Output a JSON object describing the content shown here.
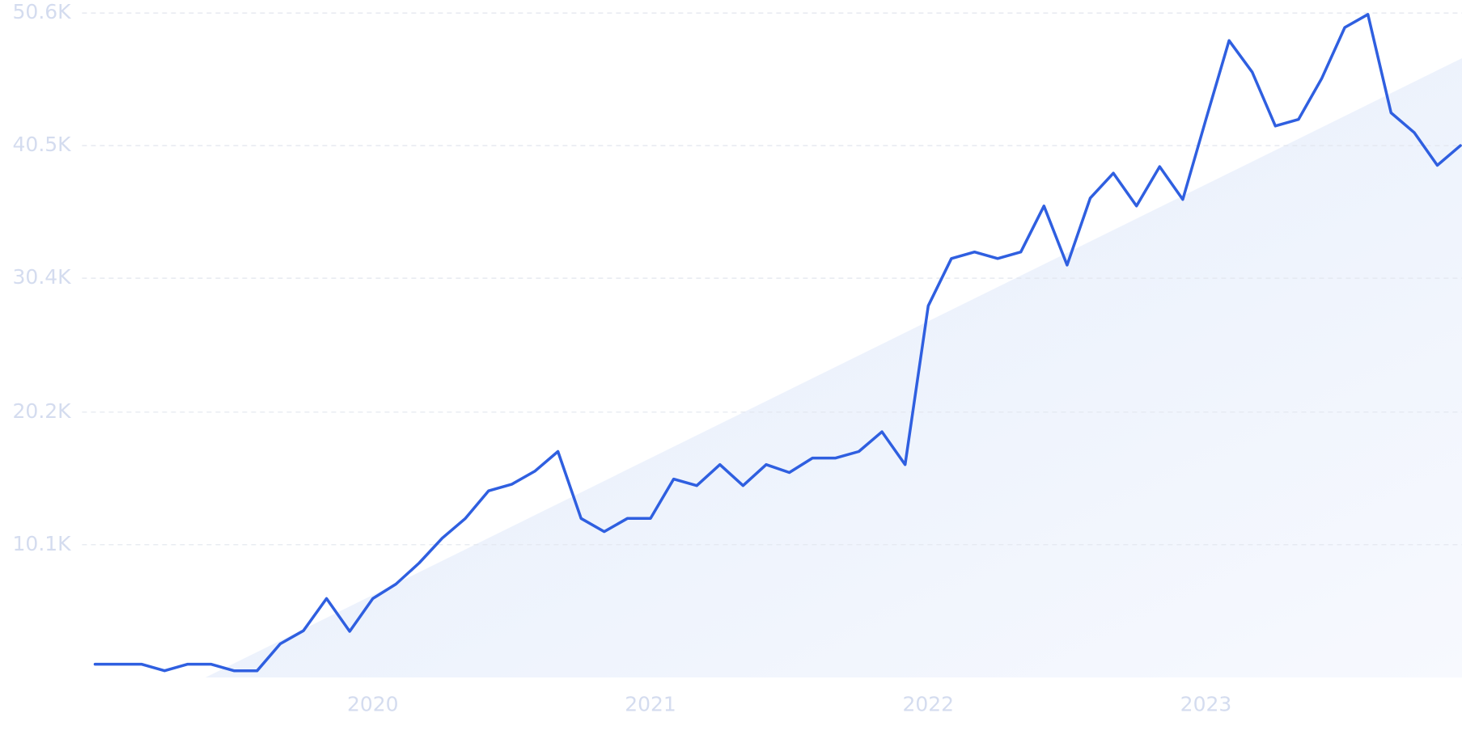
{
  "chart_data": {
    "type": "line",
    "categories": [
      null,
      null,
      null,
      null,
      null,
      null,
      null,
      null,
      null,
      null,
      null,
      null,
      "2020",
      null,
      null,
      null,
      null,
      null,
      null,
      null,
      null,
      null,
      null,
      null,
      "2021",
      null,
      null,
      null,
      null,
      null,
      null,
      null,
      null,
      null,
      null,
      null,
      "2022",
      null,
      null,
      null,
      null,
      null,
      null,
      null,
      null,
      null,
      null,
      null,
      "2023",
      null,
      null,
      null,
      null,
      null,
      null,
      null,
      null,
      null,
      null,
      null
    ],
    "series": [
      {
        "color": "#2f5fe0",
        "values": [
          1000,
          1000,
          1000,
          500,
          1000,
          1000,
          500,
          500,
          2550,
          3550,
          6000,
          3500,
          6000,
          7100,
          8700,
          10600,
          12100,
          14200,
          14700,
          15700,
          17200,
          12100,
          11100,
          12100,
          12100,
          15100,
          14600,
          16200,
          14600,
          16200,
          15600,
          16700,
          16700,
          17200,
          18700,
          16200,
          28300,
          31900,
          32400,
          31900,
          32400,
          35900,
          31400,
          36500,
          38400,
          35900,
          38900,
          36400,
          42500,
          48500,
          46100,
          42000,
          42500,
          45600,
          49500,
          50500,
          43000,
          41500,
          39000,
          40500
        ]
      }
    ],
    "ylim": [
      0,
      50600
    ],
    "yticks": [
      {
        "value": 10100,
        "label": "10.1K"
      },
      {
        "value": 20200,
        "label": "20.2K"
      },
      {
        "value": 30400,
        "label": "30.4K"
      },
      {
        "value": 40500,
        "label": "40.5K"
      },
      {
        "value": 50600,
        "label": "50.6K"
      }
    ],
    "grid": true
  }
}
